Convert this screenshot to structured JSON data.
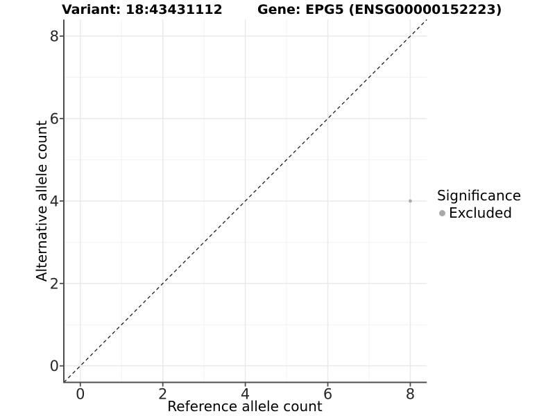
{
  "page": {
    "background": "#FFFFFF"
  },
  "titles": {
    "variant": "Variant: 18:43431112",
    "gene": "Gene: EPG5 (ENSG00000152223)"
  },
  "chart_data": {
    "type": "scatter",
    "xlabel": "Reference allele count",
    "ylabel": "Alternative allele count",
    "xlim": [
      -0.4,
      8.4
    ],
    "ylim": [
      -0.4,
      8.4
    ],
    "x_major_ticks": [
      0,
      2,
      4,
      6,
      8
    ],
    "y_major_ticks": [
      0,
      2,
      4,
      6,
      8
    ],
    "x_minor_ticks": [
      1,
      3,
      5,
      7
    ],
    "y_minor_ticks": [
      1,
      3,
      5,
      7
    ],
    "grid": true,
    "identity_line": {
      "slope": 1,
      "intercept": 0,
      "linetype": "dashed",
      "color": "#1A1A1A"
    },
    "series": [
      {
        "name": "Excluded",
        "color": "#ABABAB",
        "points": [
          {
            "x": 8,
            "y": 4
          }
        ]
      }
    ],
    "legend": {
      "title": "Significance",
      "position": "right",
      "items": [
        {
          "label": "Excluded",
          "color": "#A9A9A9"
        }
      ]
    },
    "colors": {
      "grid_major": "#E8E8E8",
      "grid_minor": "#F0F0F0",
      "axis_line": "#4D4D4D",
      "tick_text": "#262626"
    }
  }
}
